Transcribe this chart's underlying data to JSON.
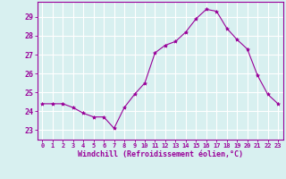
{
  "x": [
    0,
    1,
    2,
    3,
    4,
    5,
    6,
    7,
    8,
    9,
    10,
    11,
    12,
    13,
    14,
    15,
    16,
    17,
    18,
    19,
    20,
    21,
    22,
    23
  ],
  "y": [
    24.4,
    24.4,
    24.4,
    24.2,
    23.9,
    23.7,
    23.7,
    23.1,
    24.2,
    24.9,
    25.5,
    27.1,
    27.5,
    27.7,
    28.2,
    28.9,
    29.4,
    29.3,
    28.4,
    27.8,
    27.3,
    25.9,
    24.9,
    24.4
  ],
  "line_color": "#990099",
  "marker": "*",
  "marker_size": 3,
  "bg_color": "#d8f0f0",
  "grid_color": "#ffffff",
  "xlabel": "Windchill (Refroidissement éolien,°C)",
  "ylabel_ticks": [
    23,
    24,
    25,
    26,
    27,
    28,
    29
  ],
  "xtick_labels": [
    "0",
    "1",
    "2",
    "3",
    "4",
    "5",
    "6",
    "7",
    "8",
    "9",
    "10",
    "11",
    "12",
    "13",
    "14",
    "15",
    "16",
    "17",
    "18",
    "19",
    "20",
    "21",
    "22",
    "23"
  ],
  "ylim": [
    22.5,
    29.8
  ],
  "xlim": [
    -0.5,
    23.5
  ],
  "line_color_hex": "#990099",
  "axis_color": "#990099",
  "tick_color": "#990099"
}
